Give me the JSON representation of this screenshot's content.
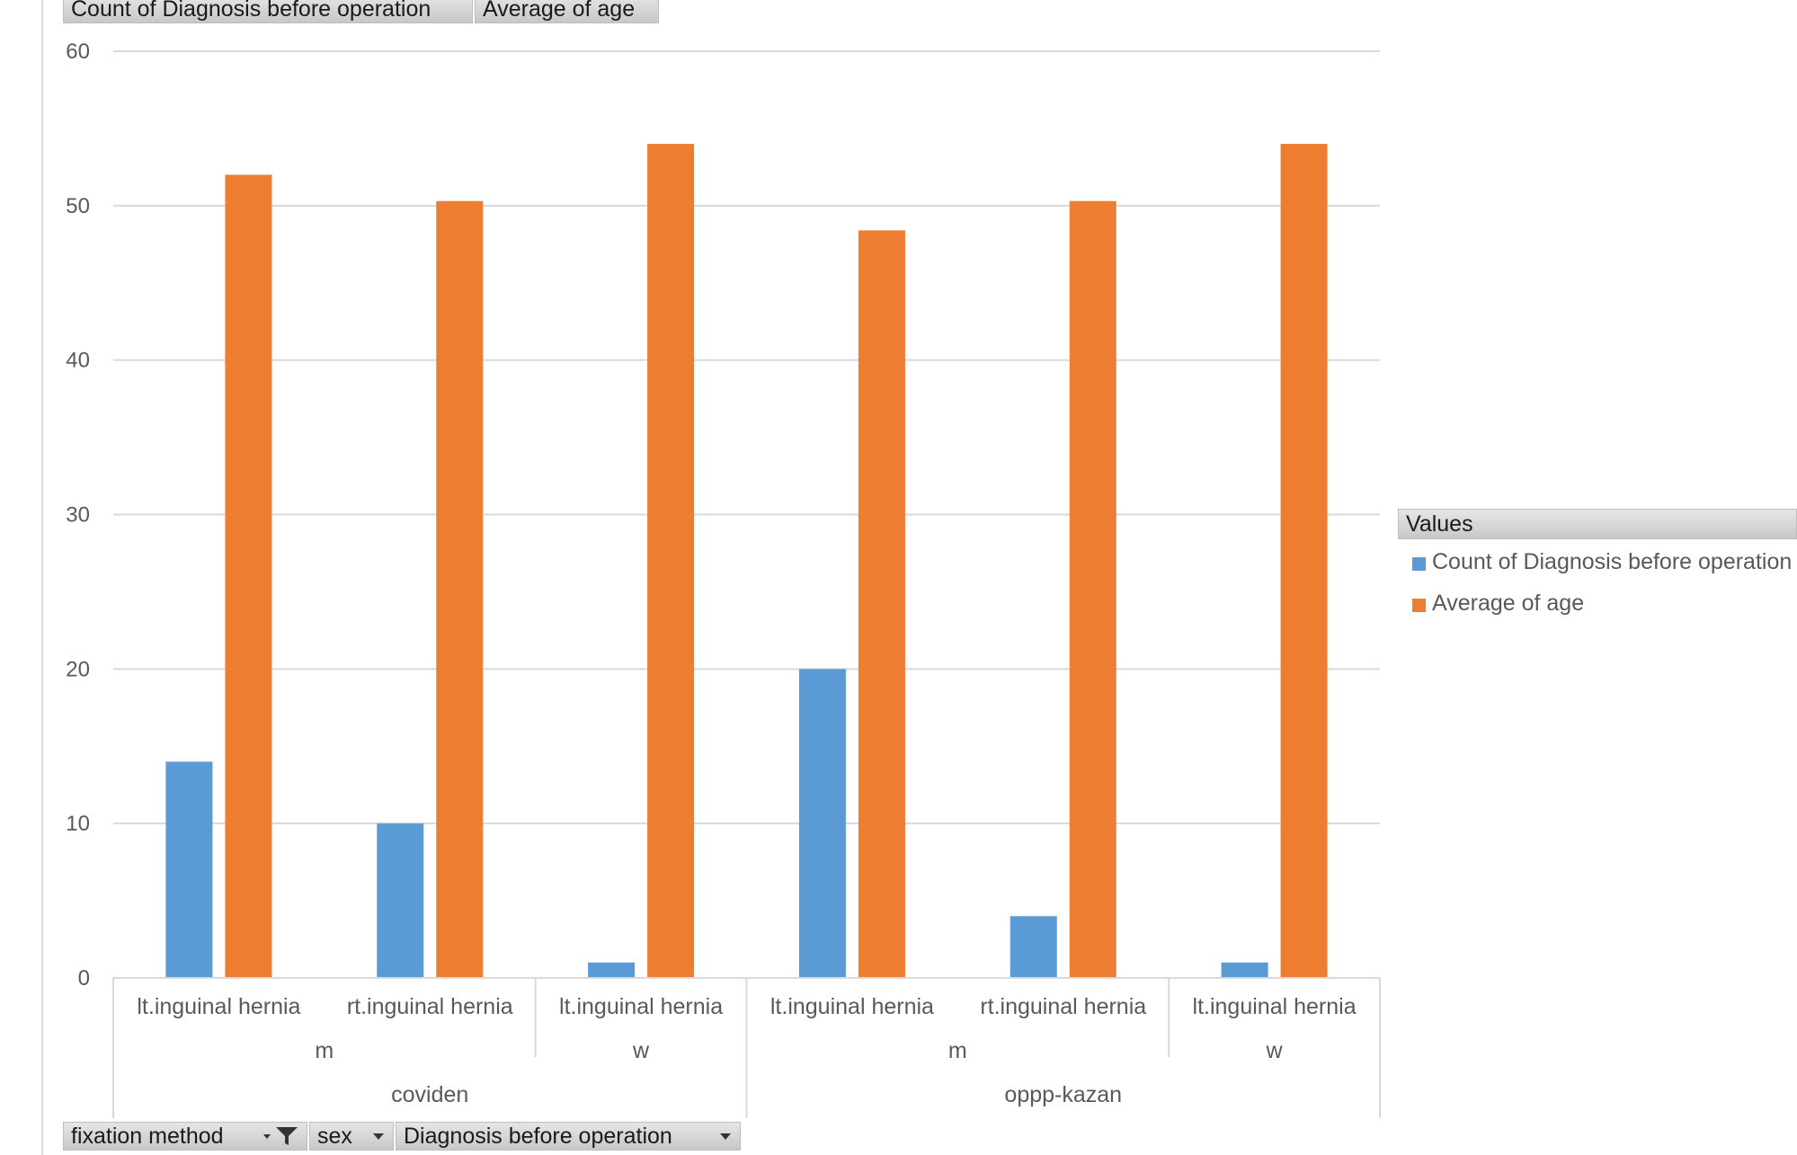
{
  "value_buttons": [
    {
      "label": "Count of Diagnosis before operation"
    },
    {
      "label": "Average of age"
    }
  ],
  "filter_buttons": [
    {
      "label": "fixation method",
      "icons": [
        "dropdown-icon",
        "filter-icon"
      ]
    },
    {
      "label": "sex",
      "icons": [
        "dropdown-icon"
      ]
    },
    {
      "label": "Diagnosis before operation",
      "icons": [
        "dropdown-icon"
      ]
    }
  ],
  "legend": {
    "title": "Values",
    "entries": [
      {
        "label": "Count of Diagnosis before operation",
        "color": "#5B9BD5"
      },
      {
        "label": "Average of age",
        "color": "#ED7D31"
      }
    ]
  },
  "chart_data": {
    "type": "bar",
    "title": "",
    "xlabel": "",
    "ylabel": "",
    "ylim": [
      0,
      60
    ],
    "yticks": [
      0,
      10,
      20,
      30,
      40,
      50,
      60
    ],
    "grid": true,
    "legend_position": "right",
    "categories": [
      {
        "group": "coviden",
        "sub": "m",
        "label": "lt.inguinal hernia"
      },
      {
        "group": "coviden",
        "sub": "m",
        "label": "rt.inguinal hernia"
      },
      {
        "group": "coviden",
        "sub": "w",
        "label": "lt.inguinal hernia"
      },
      {
        "group": "oppp-kazan",
        "sub": "m",
        "label": "lt.inguinal hernia"
      },
      {
        "group": "oppp-kazan",
        "sub": "m",
        "label": "rt.inguinal hernia"
      },
      {
        "group": "oppp-kazan",
        "sub": "w",
        "label": "lt.inguinal hernia"
      }
    ],
    "series": [
      {
        "name": "Count of Diagnosis before operation",
        "color": "#5B9BD5",
        "values": [
          14,
          10,
          1,
          20,
          4,
          1
        ]
      },
      {
        "name": "Average of age",
        "color": "#ED7D31",
        "values": [
          52,
          50.3,
          54,
          48.4,
          50.3,
          54
        ]
      }
    ]
  }
}
